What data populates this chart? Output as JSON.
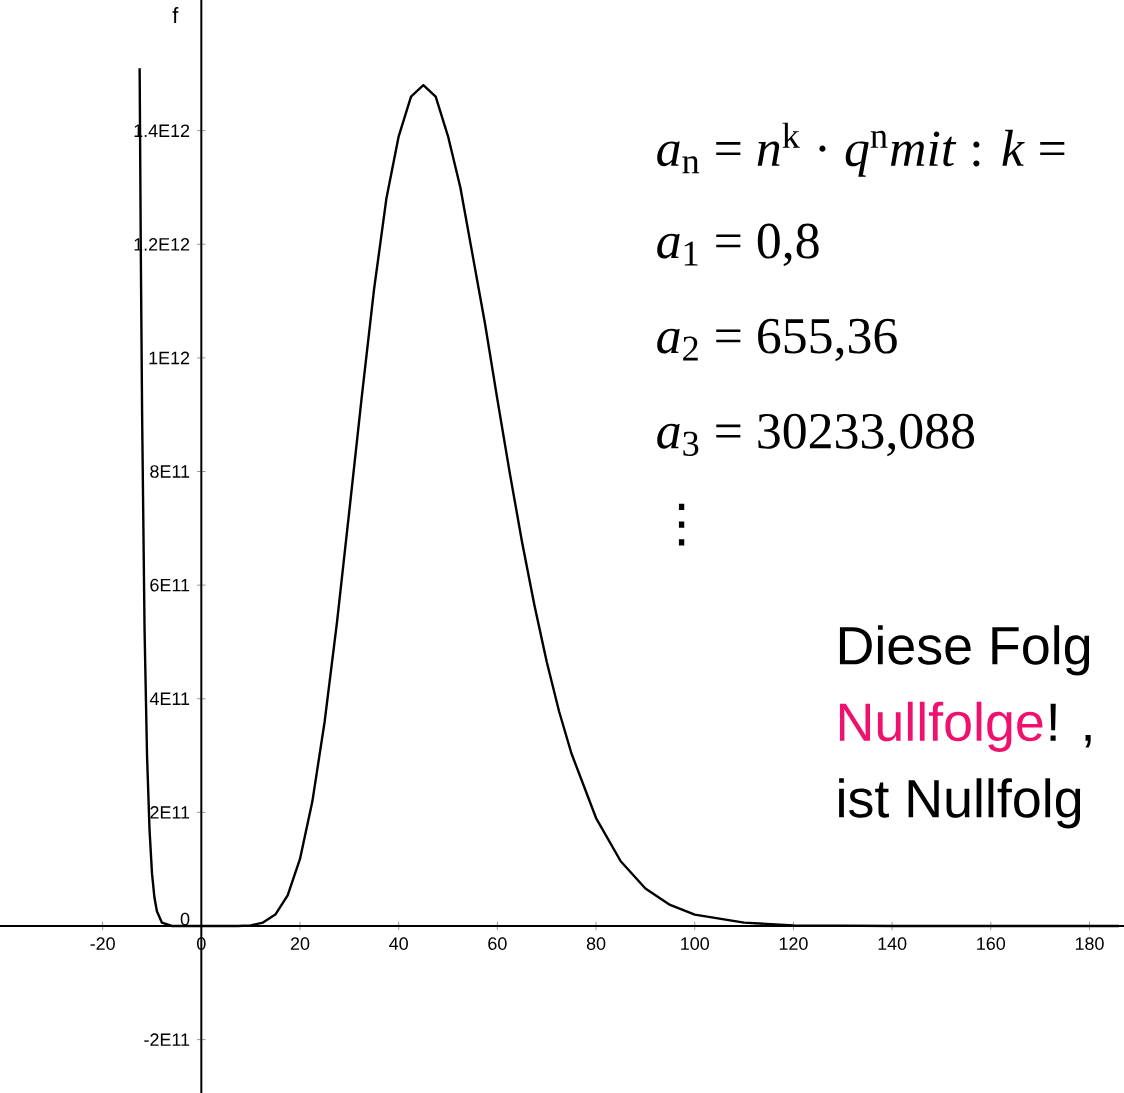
{
  "chart_data": {
    "type": "line",
    "ylabel": "f",
    "x": [
      -12.5,
      -12.25,
      -12,
      -11.5,
      -11,
      -10.5,
      -10,
      -9.5,
      -9,
      -8,
      -6,
      0,
      5,
      7.5,
      10,
      12.5,
      15,
      17.5,
      20,
      22.5,
      25,
      27.5,
      30,
      32.5,
      35,
      37.5,
      40,
      42.5,
      45,
      47.5,
      50,
      52.5,
      55,
      57.5,
      60,
      62.5,
      65,
      67.5,
      70,
      72.5,
      75,
      80,
      85,
      90,
      95,
      100,
      110,
      120,
      140,
      160,
      186
    ],
    "series": [
      {
        "color": "#000000",
        "values": [
          1510000000000.0,
          1170000000000.0,
          900000000000.0,
          520000000000.0,
          300000000000.0,
          170000000000.0,
          93000000000.0,
          50000000000.0,
          26000000000.0,
          6000000000.0,
          0,
          0,
          0,
          0,
          1000000000.0,
          6000000000.0,
          20000000000.0,
          54000000000.0,
          118000000000.0,
          219000000000.0,
          360000000000.0,
          535000000000.0,
          731000000000.0,
          930000000000.0,
          1120000000000.0,
          1280000000000.0,
          1390000000000.0,
          1460000000000.0,
          1480000000000.0,
          1460000000000.0,
          1390000000000.0,
          1300000000000.0,
          1180000000000.0,
          1060000000000.0,
          927000000000.0,
          798000000000.0,
          676000000000.0,
          565000000000.0,
          465000000000.0,
          378000000000.0,
          304000000000.0,
          190000000000.0,
          114000000000.0,
          66000000000.0,
          37000000000.0,
          20000000000.0,
          6000000000.0,
          1000000000.0,
          0,
          0,
          0
        ]
      }
    ],
    "xlim": [
      -40.8,
      187
    ],
    "ylim": [
      -294000000000.0,
      1630000000000.0
    ],
    "xticks": [
      -20,
      0,
      20,
      40,
      60,
      80,
      100,
      120,
      140,
      160,
      180
    ],
    "yticks": [
      {
        "value": -200000000000.0,
        "label": "-2E11"
      },
      0,
      {
        "value": 200000000000.0,
        "label": "2E11"
      },
      {
        "value": 400000000000.0,
        "label": "4E11"
      },
      {
        "value": 600000000000.0,
        "label": "6E11"
      },
      {
        "value": 800000000000.0,
        "label": "8E11"
      },
      {
        "value": 1000000000000.0,
        "label": "1E12"
      },
      {
        "value": 1200000000000.0,
        "label": "1.2E12"
      },
      {
        "value": 1400000000000.0,
        "label": "1.4E12"
      }
    ],
    "grid": false,
    "marker": "none",
    "line_style": "solid",
    "annotations": [
      "*a*$_{n}$ = *n*$^{k}$ · *q*$^{n}$*mit* : *k* =",
      "*a*$_{1}$ = 0,8",
      "*a*$_{2}$ = 655,36",
      "*a*$_{3}$ = 30233,088",
      "⋮",
      "Diese Folg",
      "Nullfolge",
      "! ,",
      "ist Nullfolg"
    ]
  }
}
